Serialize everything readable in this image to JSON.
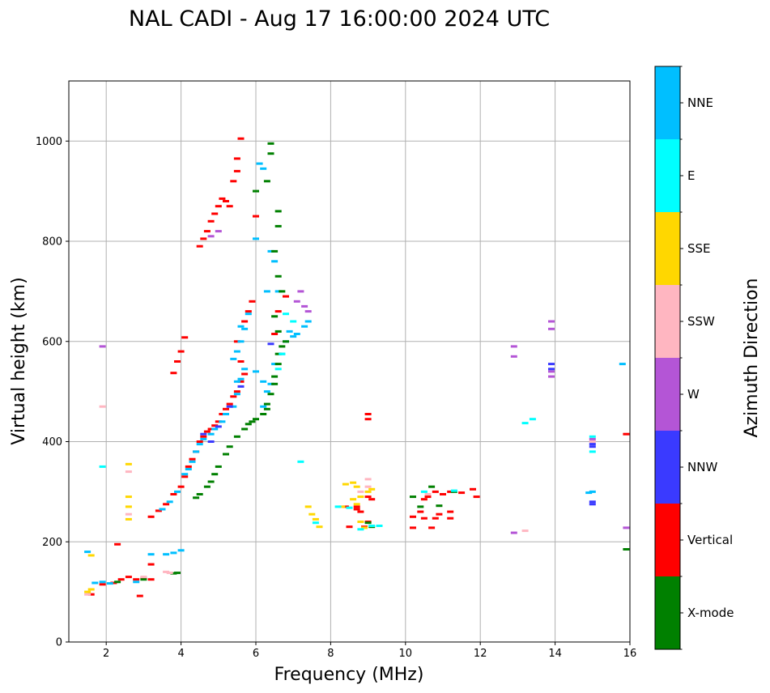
{
  "chart_data": {
    "type": "scatter",
    "title": "NAL CADI - Aug 17 16:00:00 2024 UTC",
    "xlabel": "Frequency (MHz)",
    "ylabel": "Virtual height (km)",
    "xlim": [
      1,
      16
    ],
    "ylim": [
      0,
      1120
    ],
    "xticks": [
      2,
      4,
      6,
      8,
      10,
      12,
      14,
      16
    ],
    "yticks": [
      0,
      200,
      400,
      600,
      800,
      1000
    ],
    "grid": true,
    "colorbar": {
      "title": "Azimuth Direction",
      "categories": [
        {
          "name": "X-mode",
          "color": "#008000"
        },
        {
          "name": "Vertical",
          "color": "#ff0000"
        },
        {
          "name": "NNW",
          "color": "#3a3aff"
        },
        {
          "name": "W",
          "color": "#b455d6"
        },
        {
          "name": "SSW",
          "color": "#ffb6c1"
        },
        {
          "name": "SSE",
          "color": "#ffd700"
        },
        {
          "name": "E",
          "color": "#00ffff"
        },
        {
          "name": "NNE",
          "color": "#00bfff"
        }
      ]
    },
    "series": [
      {
        "name": "Vertical",
        "color": "#ff0000",
        "points": [
          [
            1.6,
            95
          ],
          [
            1.9,
            115
          ],
          [
            2.2,
            118
          ],
          [
            2.4,
            125
          ],
          [
            2.6,
            130
          ],
          [
            2.8,
            125
          ],
          [
            3.0,
            128
          ],
          [
            3.2,
            125
          ],
          [
            2.3,
            195
          ],
          [
            2.9,
            92
          ],
          [
            3.2,
            155
          ],
          [
            3.2,
            250
          ],
          [
            3.4,
            262
          ],
          [
            3.6,
            275
          ],
          [
            3.8,
            295
          ],
          [
            4.0,
            310
          ],
          [
            4.1,
            330
          ],
          [
            4.2,
            350
          ],
          [
            4.3,
            365
          ],
          [
            4.4,
            380
          ],
          [
            4.5,
            400
          ],
          [
            4.6,
            410
          ],
          [
            4.7,
            420
          ],
          [
            4.8,
            425
          ],
          [
            4.9,
            432
          ],
          [
            5.0,
            440
          ],
          [
            5.1,
            455
          ],
          [
            5.2,
            465
          ],
          [
            5.3,
            475
          ],
          [
            5.4,
            490
          ],
          [
            5.5,
            500
          ],
          [
            5.6,
            520
          ],
          [
            5.7,
            535
          ],
          [
            5.6,
            560
          ],
          [
            5.5,
            600
          ],
          [
            5.7,
            640
          ],
          [
            5.8,
            660
          ],
          [
            5.9,
            680
          ],
          [
            3.9,
            560
          ],
          [
            4.0,
            580
          ],
          [
            4.1,
            608
          ],
          [
            3.8,
            537
          ],
          [
            4.5,
            790
          ],
          [
            4.6,
            805
          ],
          [
            4.7,
            820
          ],
          [
            4.8,
            840
          ],
          [
            4.9,
            855
          ],
          [
            5.0,
            870
          ],
          [
            5.1,
            885
          ],
          [
            5.2,
            880
          ],
          [
            5.3,
            870
          ],
          [
            5.4,
            920
          ],
          [
            5.5,
            940
          ],
          [
            5.5,
            965
          ],
          [
            5.6,
            1005
          ],
          [
            6.0,
            850
          ],
          [
            6.8,
            690
          ],
          [
            6.6,
            660
          ],
          [
            6.5,
            615
          ],
          [
            9.0,
            445
          ],
          [
            9.0,
            455
          ],
          [
            9.0,
            290
          ],
          [
            9.1,
            285
          ],
          [
            8.4,
            270
          ],
          [
            8.7,
            270
          ],
          [
            8.8,
            260
          ],
          [
            9.0,
            240
          ],
          [
            8.9,
            230
          ],
          [
            8.7,
            265
          ],
          [
            8.5,
            230
          ],
          [
            10.2,
            250
          ],
          [
            10.4,
            260
          ],
          [
            10.6,
            290
          ],
          [
            10.8,
            300
          ],
          [
            11.0,
            295
          ],
          [
            11.2,
            300
          ],
          [
            11.5,
            298
          ],
          [
            11.8,
            305
          ],
          [
            11.9,
            290
          ],
          [
            10.2,
            228
          ],
          [
            10.7,
            228
          ],
          [
            10.5,
            285
          ],
          [
            10.9,
            255
          ],
          [
            11.2,
            260
          ],
          [
            10.5,
            247
          ],
          [
            10.8,
            247
          ],
          [
            11.2,
            247
          ],
          [
            15.9,
            415
          ]
        ]
      },
      {
        "name": "NNE",
        "color": "#00bfff",
        "points": [
          [
            1.5,
            180
          ],
          [
            1.7,
            118
          ],
          [
            1.9,
            120
          ],
          [
            2.1,
            117
          ],
          [
            2.8,
            120
          ],
          [
            3.2,
            175
          ],
          [
            3.6,
            175
          ],
          [
            3.8,
            178
          ],
          [
            4.0,
            183
          ],
          [
            3.5,
            265
          ],
          [
            3.7,
            280
          ],
          [
            3.9,
            300
          ],
          [
            4.1,
            335
          ],
          [
            4.2,
            345
          ],
          [
            4.3,
            360
          ],
          [
            4.4,
            380
          ],
          [
            4.5,
            395
          ],
          [
            4.6,
            405
          ],
          [
            4.8,
            415
          ],
          [
            4.9,
            425
          ],
          [
            5.1,
            440
          ],
          [
            5.2,
            455
          ],
          [
            5.4,
            470
          ],
          [
            5.5,
            495
          ],
          [
            5.6,
            525
          ],
          [
            5.7,
            545
          ],
          [
            5.4,
            565
          ],
          [
            5.5,
            580
          ],
          [
            5.6,
            600
          ],
          [
            5.7,
            625
          ],
          [
            5.8,
            655
          ],
          [
            5.6,
            630
          ],
          [
            5.5,
            520
          ],
          [
            6.1,
            955
          ],
          [
            6.2,
            945
          ],
          [
            6.0,
            805
          ],
          [
            6.4,
            780
          ],
          [
            6.5,
            760
          ],
          [
            6.3,
            700
          ],
          [
            6.6,
            700
          ],
          [
            6.0,
            540
          ],
          [
            6.2,
            520
          ],
          [
            6.4,
            515
          ],
          [
            6.5,
            555
          ],
          [
            6.7,
            575
          ],
          [
            6.8,
            600
          ],
          [
            7.1,
            615
          ],
          [
            7.3,
            630
          ],
          [
            7.4,
            640
          ],
          [
            6.9,
            620
          ],
          [
            7.0,
            610
          ],
          [
            6.2,
            470
          ],
          [
            6.3,
            500
          ],
          [
            14.9,
            298
          ],
          [
            15.0,
            300
          ],
          [
            15.8,
            555
          ]
        ]
      },
      {
        "name": "X-mode",
        "color": "#008000",
        "points": [
          [
            2.3,
            120
          ],
          [
            3.0,
            125
          ],
          [
            3.8,
            137
          ],
          [
            3.9,
            138
          ],
          [
            4.4,
            288
          ],
          [
            4.5,
            295
          ],
          [
            4.7,
            310
          ],
          [
            4.8,
            320
          ],
          [
            4.9,
            335
          ],
          [
            5.0,
            350
          ],
          [
            5.2,
            375
          ],
          [
            5.3,
            390
          ],
          [
            5.5,
            410
          ],
          [
            5.7,
            425
          ],
          [
            5.8,
            435
          ],
          [
            5.9,
            440
          ],
          [
            6.0,
            445
          ],
          [
            6.2,
            455
          ],
          [
            6.3,
            465
          ],
          [
            6.3,
            475
          ],
          [
            6.4,
            495
          ],
          [
            6.5,
            515
          ],
          [
            6.5,
            530
          ],
          [
            6.6,
            555
          ],
          [
            6.6,
            575
          ],
          [
            6.7,
            590
          ],
          [
            6.8,
            600
          ],
          [
            6.6,
            620
          ],
          [
            6.5,
            650
          ],
          [
            6.7,
            700
          ],
          [
            6.6,
            730
          ],
          [
            6.5,
            780
          ],
          [
            6.6,
            830
          ],
          [
            6.6,
            860
          ],
          [
            6.0,
            900
          ],
          [
            6.3,
            920
          ],
          [
            6.4,
            975
          ],
          [
            6.4,
            995
          ],
          [
            9.1,
            230
          ],
          [
            9.0,
            238
          ],
          [
            10.2,
            290
          ],
          [
            10.4,
            270
          ],
          [
            10.7,
            310
          ],
          [
            10.9,
            272
          ],
          [
            11.3,
            300
          ],
          [
            15.9,
            185
          ]
        ]
      },
      {
        "name": "NNW",
        "color": "#3a3aff",
        "points": [
          [
            4.8,
            400
          ],
          [
            5.0,
            430
          ],
          [
            5.3,
            470
          ],
          [
            5.6,
            510
          ],
          [
            4.6,
            415
          ],
          [
            6.4,
            595
          ],
          [
            13.9,
            555
          ],
          [
            13.9,
            545
          ],
          [
            15.0,
            390
          ],
          [
            15.0,
            395
          ],
          [
            15.0,
            275
          ],
          [
            15.0,
            280
          ]
        ]
      },
      {
        "name": "W",
        "color": "#b455d6",
        "points": [
          [
            1.9,
            590
          ],
          [
            4.8,
            810
          ],
          [
            5.0,
            820
          ],
          [
            7.2,
            700
          ],
          [
            7.3,
            670
          ],
          [
            7.4,
            660
          ],
          [
            7.1,
            680
          ],
          [
            12.9,
            590
          ],
          [
            12.9,
            570
          ],
          [
            13.9,
            640
          ],
          [
            13.9,
            625
          ],
          [
            13.9,
            530
          ],
          [
            13.9,
            540
          ],
          [
            12.9,
            218
          ],
          [
            15.0,
            405
          ],
          [
            15.9,
            228
          ]
        ]
      },
      {
        "name": "SSW",
        "color": "#ffb6c1",
        "points": [
          [
            1.9,
            470
          ],
          [
            1.5,
            95
          ],
          [
            2.6,
            340
          ],
          [
            2.6,
            255
          ],
          [
            3.6,
            140
          ],
          [
            3.7,
            138
          ],
          [
            3.0,
            130
          ],
          [
            8.8,
            300
          ],
          [
            9.0,
            325
          ],
          [
            9.0,
            310
          ],
          [
            10.6,
            295
          ],
          [
            15.0,
            400
          ],
          [
            13.2,
            222
          ]
        ]
      },
      {
        "name": "SSE",
        "color": "#ffd700",
        "points": [
          [
            1.5,
            100
          ],
          [
            1.6,
            105
          ],
          [
            1.6,
            173
          ],
          [
            2.6,
            355
          ],
          [
            2.6,
            290
          ],
          [
            2.6,
            270
          ],
          [
            2.6,
            245
          ],
          [
            7.4,
            270
          ],
          [
            7.5,
            255
          ],
          [
            7.6,
            245
          ],
          [
            7.7,
            230
          ],
          [
            8.4,
            315
          ],
          [
            8.6,
            318
          ],
          [
            8.7,
            310
          ],
          [
            8.8,
            290
          ],
          [
            8.6,
            285
          ],
          [
            8.7,
            275
          ],
          [
            9.0,
            300
          ],
          [
            9.1,
            305
          ],
          [
            8.8,
            240
          ],
          [
            8.9,
            228
          ],
          [
            8.3,
            270
          ]
        ]
      },
      {
        "name": "E",
        "color": "#00ffff",
        "points": [
          [
            1.9,
            350
          ],
          [
            7.2,
            360
          ],
          [
            7.6,
            238
          ],
          [
            8.2,
            270
          ],
          [
            8.5,
            268
          ],
          [
            8.8,
            225
          ],
          [
            9.1,
            232
          ],
          [
            9.3,
            232
          ],
          [
            10.5,
            300
          ],
          [
            11.3,
            302
          ],
          [
            13.2,
            437
          ],
          [
            13.4,
            445
          ],
          [
            15.0,
            410
          ],
          [
            15.0,
            380
          ],
          [
            6.7,
            575
          ],
          [
            6.6,
            545
          ],
          [
            6.8,
            655
          ],
          [
            7.0,
            640
          ]
        ]
      }
    ]
  }
}
